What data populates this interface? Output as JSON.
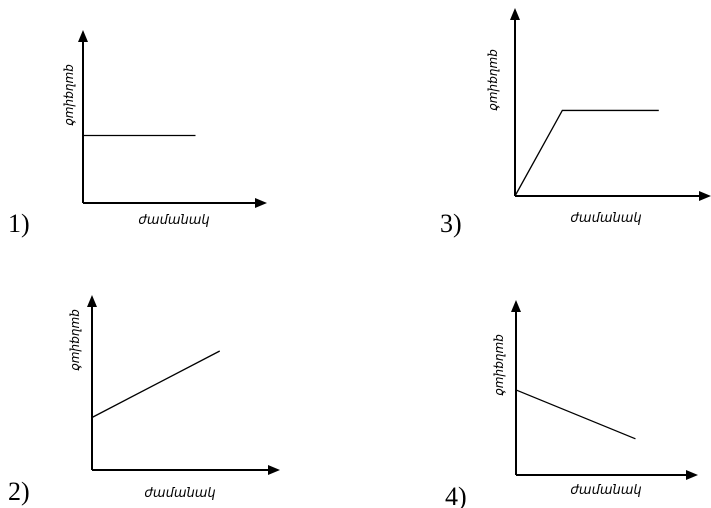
{
  "chart_data": [
    {
      "type": "line",
      "number": "1)",
      "xlabel": "ժամանակ",
      "ylabel": "զանգված",
      "xlim": [
        0,
        1
      ],
      "ylim": [
        0,
        1
      ],
      "series": [
        {
          "x": [
            0,
            0.75
          ],
          "y": [
            0.45,
            0.45
          ]
        }
      ]
    },
    {
      "type": "line",
      "number": "2)",
      "xlabel": "ժամանակ",
      "ylabel": "զանգված",
      "xlim": [
        0,
        1
      ],
      "ylim": [
        0,
        1
      ],
      "series": [
        {
          "x": [
            0,
            0.73
          ],
          "y": [
            0.3,
            0.68
          ]
        }
      ]
    },
    {
      "type": "line",
      "number": "3)",
      "xlabel": "ժամանակ",
      "ylabel": "զանգված",
      "xlim": [
        0,
        1
      ],
      "ylim": [
        0,
        1
      ],
      "series": [
        {
          "x": [
            0,
            0.26,
            0.79
          ],
          "y": [
            0,
            0.47,
            0.47
          ]
        }
      ]
    },
    {
      "type": "line",
      "number": "4)",
      "xlabel": "ժամանակ",
      "ylabel": "զանգված",
      "xlim": [
        0,
        1
      ],
      "ylim": [
        0,
        1
      ],
      "series": [
        {
          "x": [
            0,
            0.66
          ],
          "y": [
            0.47,
            0.2
          ]
        }
      ]
    }
  ]
}
